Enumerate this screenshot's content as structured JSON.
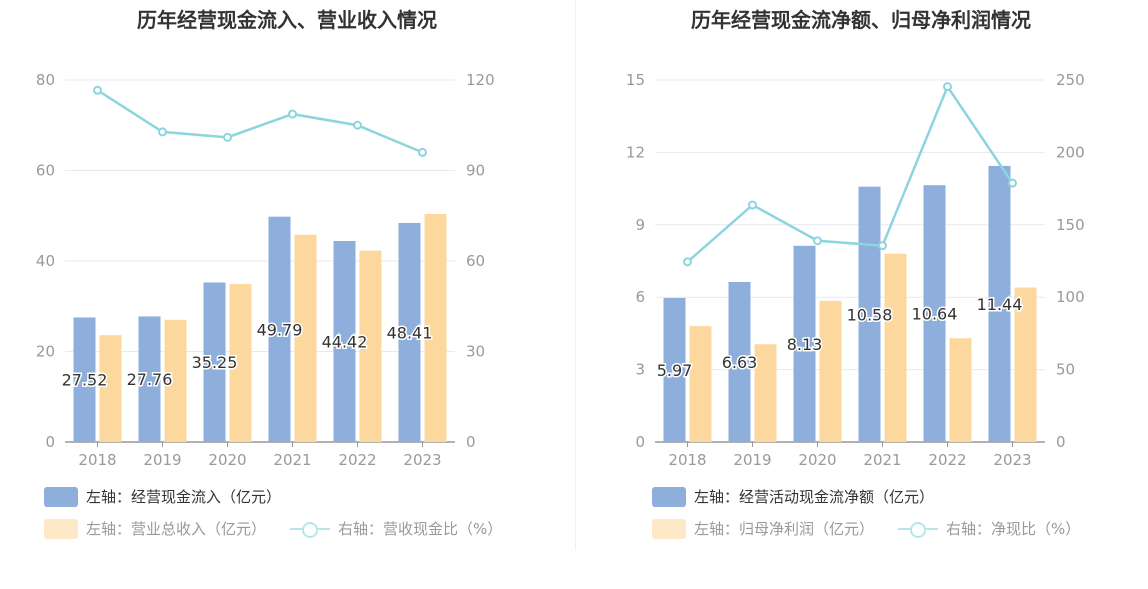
{
  "chart_data": [
    {
      "type": "bar",
      "title": "历年经营现金流入、营业收入情况",
      "categories": [
        "2018",
        "2019",
        "2020",
        "2021",
        "2022",
        "2023"
      ],
      "left_axis": {
        "ticks": [
          "0",
          "20",
          "40",
          "60",
          "80"
        ],
        "range": [
          0,
          80
        ]
      },
      "right_axis": {
        "ticks": [
          "0",
          "30",
          "60",
          "90",
          "120"
        ],
        "range": [
          0,
          120
        ]
      },
      "series": [
        {
          "name": "左轴：经营现金流入（亿元）",
          "axis": "left",
          "type": "bar",
          "color": "#8eaedc",
          "values": [
            27.52,
            27.76,
            35.25,
            49.79,
            44.42,
            48.41
          ],
          "labels": [
            "27.52",
            "27.76",
            "35.25",
            "49.79",
            "44.42",
            "48.41"
          ]
        },
        {
          "name": "左轴：营业总收入（亿元）",
          "axis": "left",
          "type": "bar",
          "color": "#fdd89e",
          "values": [
            23.6,
            27.0,
            34.9,
            45.8,
            42.3,
            50.4
          ]
        },
        {
          "name": "右轴：营收现金比（%）",
          "axis": "right",
          "type": "line",
          "color": "#8cd5dd",
          "values": [
            116.6,
            102.8,
            101.0,
            108.7,
            105.0,
            96.0
          ]
        }
      ],
      "grid": true,
      "legend_position": "bottom-left"
    },
    {
      "type": "bar",
      "title": "历年经营现金流净额、归母净利润情况",
      "categories": [
        "2018",
        "2019",
        "2020",
        "2021",
        "2022",
        "2023"
      ],
      "left_axis": {
        "ticks": [
          "0",
          "3",
          "6",
          "9",
          "12",
          "15"
        ],
        "range": [
          0,
          15
        ]
      },
      "right_axis": {
        "ticks": [
          "0",
          "50",
          "100",
          "150",
          "200",
          "250"
        ],
        "range": [
          0,
          250
        ]
      },
      "series": [
        {
          "name": "左轴：经营活动现金流净额（亿元）",
          "axis": "left",
          "type": "bar",
          "color": "#8eaedc",
          "values": [
            5.97,
            6.63,
            8.13,
            10.58,
            10.64,
            11.44
          ],
          "labels": [
            "5.97",
            "6.63",
            "8.13",
            "10.58",
            "10.64",
            "11.44"
          ]
        },
        {
          "name": "左轴：归母净利润（亿元）",
          "axis": "left",
          "type": "bar",
          "color": "#fdd89e",
          "values": [
            4.8,
            4.05,
            5.85,
            7.8,
            4.3,
            6.4
          ]
        },
        {
          "name": "右轴：净现比（%）",
          "axis": "right",
          "type": "line",
          "color": "#8cd5dd",
          "values": [
            124.4,
            163.7,
            139.0,
            135.6,
            245.4,
            178.8
          ]
        }
      ],
      "grid": true,
      "legend_position": "bottom-left"
    }
  ]
}
